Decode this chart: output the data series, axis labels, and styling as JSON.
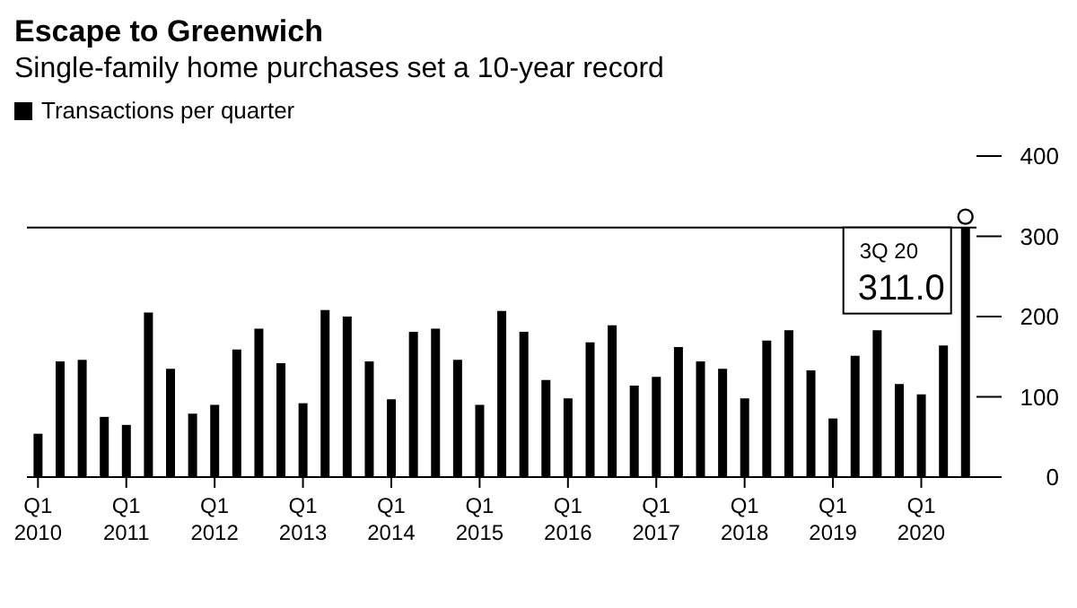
{
  "chart_data": {
    "type": "bar",
    "title": "Escape to Greenwich",
    "subtitle": "Single-family home purchases set a 10-year record",
    "categories": [
      "Q1 2010",
      null,
      null,
      null,
      "Q1 2011",
      null,
      null,
      null,
      "Q1 2012",
      null,
      null,
      null,
      "Q1 2013",
      null,
      null,
      null,
      "Q1 2014",
      null,
      null,
      null,
      "Q1 2015",
      null,
      null,
      null,
      "Q1 2016",
      null,
      null,
      null,
      "Q1 2017",
      null,
      null,
      null,
      "Q1 2018",
      null,
      null,
      null,
      "Q1 2019",
      null,
      null,
      null,
      "Q1 2020",
      null,
      null
    ],
    "series": [
      {
        "name": "Transactions per quarter",
        "color": "#000000",
        "values": [
          54,
          144,
          146,
          75,
          65,
          205,
          135,
          79,
          90,
          159,
          185,
          142,
          92,
          208,
          200,
          144,
          97,
          181,
          185,
          146,
          90,
          207,
          181,
          121,
          98,
          168,
          189,
          114,
          125,
          162,
          144,
          135,
          98,
          170,
          183,
          133,
          73,
          151,
          183,
          116,
          103,
          164,
          311
        ]
      }
    ],
    "ylim": [
      0,
      400
    ],
    "yticks": [
      0,
      100,
      200,
      300,
      400
    ],
    "grid": false,
    "legend": "top left",
    "ref_lines": [
      {
        "axis": "y",
        "value": 311,
        "color": "#000000"
      }
    ],
    "annotations": [
      "3Q 20\n311.0"
    ]
  }
}
